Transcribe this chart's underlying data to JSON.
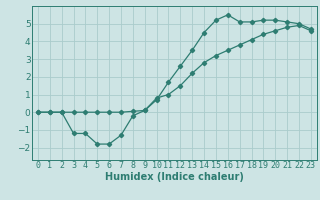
{
  "line1_x": [
    0,
    1,
    2,
    3,
    4,
    5,
    6,
    7,
    8,
    9,
    10,
    11,
    12,
    13,
    14,
    15,
    16,
    17,
    18,
    19,
    20,
    21,
    22,
    23
  ],
  "line1_y": [
    0,
    0,
    0,
    -1.2,
    -1.2,
    -1.8,
    -1.8,
    -1.3,
    -0.2,
    0.1,
    0.7,
    1.7,
    2.6,
    3.5,
    4.5,
    5.2,
    5.5,
    5.1,
    5.1,
    5.2,
    5.2,
    5.1,
    5.0,
    4.7
  ],
  "line2_x": [
    0,
    1,
    2,
    3,
    4,
    5,
    6,
    7,
    8,
    9,
    10,
    11,
    12,
    13,
    14,
    15,
    16,
    17,
    18,
    19,
    20,
    21,
    22,
    23
  ],
  "line2_y": [
    0,
    0,
    0,
    0,
    0,
    0,
    0,
    0,
    0.05,
    0.1,
    0.8,
    1.0,
    1.5,
    2.2,
    2.8,
    3.2,
    3.5,
    3.8,
    4.1,
    4.4,
    4.6,
    4.8,
    4.9,
    4.6
  ],
  "line_color": "#2e7d72",
  "bg_color": "#cde4e4",
  "grid_color": "#aacccc",
  "xlabel": "Humidex (Indice chaleur)",
  "xlim": [
    -0.5,
    23.5
  ],
  "ylim": [
    -2.7,
    6.0
  ],
  "yticks": [
    -2,
    -1,
    0,
    1,
    2,
    3,
    4,
    5
  ],
  "xticks": [
    0,
    1,
    2,
    3,
    4,
    5,
    6,
    7,
    8,
    9,
    10,
    11,
    12,
    13,
    14,
    15,
    16,
    17,
    18,
    19,
    20,
    21,
    22,
    23
  ],
  "marker": "D",
  "marker_size": 2.2,
  "line_width": 0.9,
  "tick_fontsize": 6.5,
  "xlabel_fontsize": 7.0
}
